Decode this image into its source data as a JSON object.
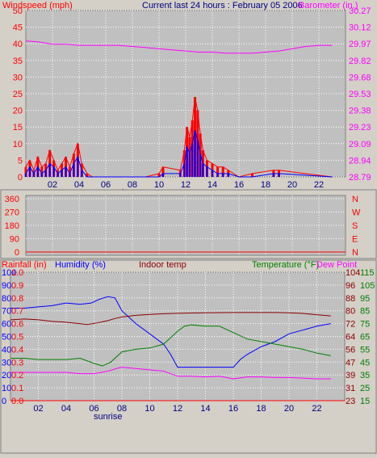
{
  "chart_data": [
    {
      "type": "line",
      "title": "Current last 24 hours : February 05 2006",
      "left_axis_label": "Windspeed (mph)",
      "right_axis_label": "Barometer (in.)",
      "x_ticks": [
        "02",
        "04",
        "06",
        "08",
        "10",
        "12",
        "14",
        "16",
        "18",
        "20",
        "22"
      ],
      "x_annotation": "sunrise",
      "left_ticks": [
        "50",
        "45",
        "40",
        "35",
        "30",
        "25",
        "20",
        "15",
        "10",
        "5",
        "0"
      ],
      "right_ticks": [
        "30.27",
        "30.12",
        "29.97",
        "29.82",
        "29.68",
        "29.53",
        "29.38",
        "29.23",
        "29.09",
        "28.94",
        "28.79"
      ],
      "ylim_left": [
        0,
        50
      ],
      "ylim_right": [
        28.79,
        30.27
      ],
      "xlim": [
        0,
        24
      ],
      "grid": true,
      "colors": {
        "gust": "#ff0000",
        "wind": "#0000ff",
        "barometer": "#ff00ff"
      },
      "series": [
        {
          "key": "barometer",
          "axis": "right",
          "x": [
            0,
            1,
            2,
            3,
            4,
            5,
            6,
            7,
            8,
            9,
            10,
            11,
            12,
            13,
            14,
            15,
            16,
            17,
            18,
            19,
            20,
            21,
            22,
            23
          ],
          "values": [
            30.0,
            29.99,
            29.97,
            29.97,
            29.96,
            29.96,
            29.96,
            29.96,
            29.95,
            29.94,
            29.93,
            29.92,
            29.91,
            29.9,
            29.9,
            29.89,
            29.89,
            29.89,
            29.9,
            29.91,
            29.93,
            29.95,
            29.96,
            29.96
          ]
        },
        {
          "key": "gust",
          "axis": "left",
          "x": [
            0,
            0.3,
            0.6,
            0.9,
            1.2,
            1.5,
            1.8,
            2.1,
            2.4,
            2.7,
            3,
            3.3,
            3.6,
            3.9,
            4.2,
            4.6,
            5,
            9,
            10,
            10.3,
            11.6,
            11.9,
            12.1,
            12.3,
            12.5,
            12.7,
            12.9,
            13.1,
            13.3,
            13.6,
            14,
            14.4,
            14.8,
            15.2,
            16,
            17,
            18.6,
            19,
            23
          ],
          "values": [
            3,
            5,
            2,
            6,
            3,
            4,
            8,
            5,
            2,
            4,
            6,
            3,
            7,
            10,
            4,
            1,
            0,
            0,
            1,
            3,
            2,
            8,
            15,
            12,
            17,
            24,
            20,
            13,
            8,
            5,
            4,
            3,
            3,
            2,
            0,
            1,
            2,
            2,
            0
          ]
        },
        {
          "key": "wind",
          "axis": "left",
          "x": [
            0,
            0.3,
            0.6,
            0.9,
            1.2,
            1.5,
            1.8,
            2.1,
            2.4,
            2.7,
            3,
            3.3,
            3.6,
            3.9,
            4.2,
            4.6,
            5,
            9,
            10,
            10.3,
            11.6,
            11.9,
            12.1,
            12.3,
            12.5,
            12.7,
            12.9,
            13.1,
            13.3,
            13.6,
            14,
            14.4,
            14.8,
            15.2,
            16,
            17,
            18.6,
            19,
            23
          ],
          "values": [
            1,
            3,
            1,
            3,
            1,
            2,
            4,
            3,
            1,
            2,
            3,
            1,
            4,
            6,
            2,
            0,
            0,
            0,
            0,
            1,
            1,
            4,
            9,
            7,
            10,
            14,
            11,
            7,
            4,
            3,
            2,
            1,
            1,
            1,
            0,
            0,
            1,
            1,
            0
          ]
        }
      ]
    },
    {
      "type": "line",
      "left_ticks": [
        "360",
        "270",
        "180",
        "90",
        "0"
      ],
      "right_ticks": [
        "N",
        "W",
        "S",
        "E",
        "N"
      ],
      "ylim_left": [
        0,
        360
      ],
      "xlim": [
        0,
        24
      ],
      "grid": true,
      "series": [
        {
          "key": "direction",
          "color": "#ff0000",
          "x": [
            0,
            24
          ],
          "values": [
            0,
            0
          ]
        }
      ]
    },
    {
      "type": "line",
      "labels": {
        "rainfall": "Rainfall (in)",
        "humidity": "Humidity (%)",
        "indoor": "Indoor temp",
        "temperature": "Temperature (°F)",
        "dewpoint": "Dew Point"
      },
      "rain_ticks": [
        "1.0",
        "0.9",
        "0.8",
        "0.7",
        "0.6",
        "0.5",
        "0.4",
        "0.3",
        "0.2",
        "0.1",
        "0.0"
      ],
      "hum_ticks": [
        "100",
        "90",
        "80",
        "70",
        "60",
        "50",
        "40",
        "30",
        "20",
        "10",
        "0"
      ],
      "indoor_ticks": [
        "104",
        "96",
        "88",
        "80",
        "72",
        "64",
        "56",
        "47",
        "39",
        "31",
        "23"
      ],
      "temp_ticks": [
        "115",
        "105",
        "95",
        "85",
        "75",
        "65",
        "55",
        "45",
        "35",
        "25",
        "15"
      ],
      "x_ticks": [
        "02",
        "04",
        "06",
        "08",
        "10",
        "12",
        "14",
        "16",
        "18",
        "20",
        "22"
      ],
      "x_annotation": "sunrise",
      "xlim": [
        0,
        24
      ],
      "grid": true,
      "colors": {
        "rainfall": "#ff0000",
        "humidity": "#0000ff",
        "indoor": "#8b0000",
        "temperature": "#008000",
        "dewpoint": "#ff00ff"
      },
      "series": [
        {
          "key": "humidity",
          "x": [
            0,
            1,
            2,
            3,
            4,
            5,
            5.8,
            6.4,
            7,
            7.5,
            8,
            9,
            10,
            11,
            11.5,
            12,
            13,
            14,
            15,
            16,
            16.5,
            17,
            18,
            19,
            20,
            21,
            22,
            23
          ],
          "values": [
            72,
            72,
            73,
            74,
            76,
            75,
            76,
            79,
            81,
            80,
            70,
            60,
            52,
            44,
            36,
            26,
            26,
            26,
            26,
            26,
            32,
            36,
            42,
            46,
            52,
            55,
            58,
            60
          ]
        },
        {
          "key": "indoor",
          "x": [
            0,
            1,
            2,
            3,
            4,
            5,
            5.5,
            6.2,
            7,
            7.5,
            8,
            9,
            10,
            11,
            12,
            13,
            14,
            15,
            16,
            17,
            18,
            19,
            20,
            21,
            22,
            23
          ],
          "values": [
            74,
            74.5,
            74,
            73,
            72.5,
            71.5,
            71,
            72,
            73.5,
            74.8,
            75.8,
            76.8,
            77.4,
            77.8,
            78.1,
            78.3,
            78.4,
            78.5,
            78.6,
            78.6,
            78.6,
            78.6,
            78.4,
            78,
            77.2,
            76.4
          ]
        },
        {
          "key": "temperature",
          "x": [
            0,
            1,
            2,
            3,
            4,
            5,
            6,
            6.6,
            7.2,
            8,
            9,
            10,
            11,
            12,
            12.5,
            13,
            14,
            15,
            16,
            17,
            18,
            19,
            20,
            21,
            22,
            23
          ],
          "values": [
            48,
            48,
            47,
            47,
            47,
            48,
            44,
            42,
            45,
            53,
            55,
            56,
            59,
            69,
            73,
            74,
            73,
            73,
            68,
            63,
            61,
            59,
            57,
            55,
            52,
            50
          ]
        },
        {
          "key": "dewpoint",
          "x": [
            0,
            1,
            2,
            3,
            4,
            5,
            6,
            7,
            7.6,
            8,
            9,
            10,
            11,
            12,
            13,
            14,
            15,
            16,
            17,
            18,
            19,
            20,
            21,
            22,
            23
          ],
          "values": [
            37,
            37,
            37,
            37,
            37,
            36,
            36,
            38,
            40,
            41,
            40,
            39,
            38,
            34,
            34,
            33.5,
            34,
            32,
            33.5,
            33.5,
            33,
            33,
            32.5,
            32,
            32
          ]
        },
        {
          "key": "rainfall",
          "x": [
            0,
            24
          ],
          "values": [
            0,
            0
          ]
        }
      ]
    }
  ]
}
